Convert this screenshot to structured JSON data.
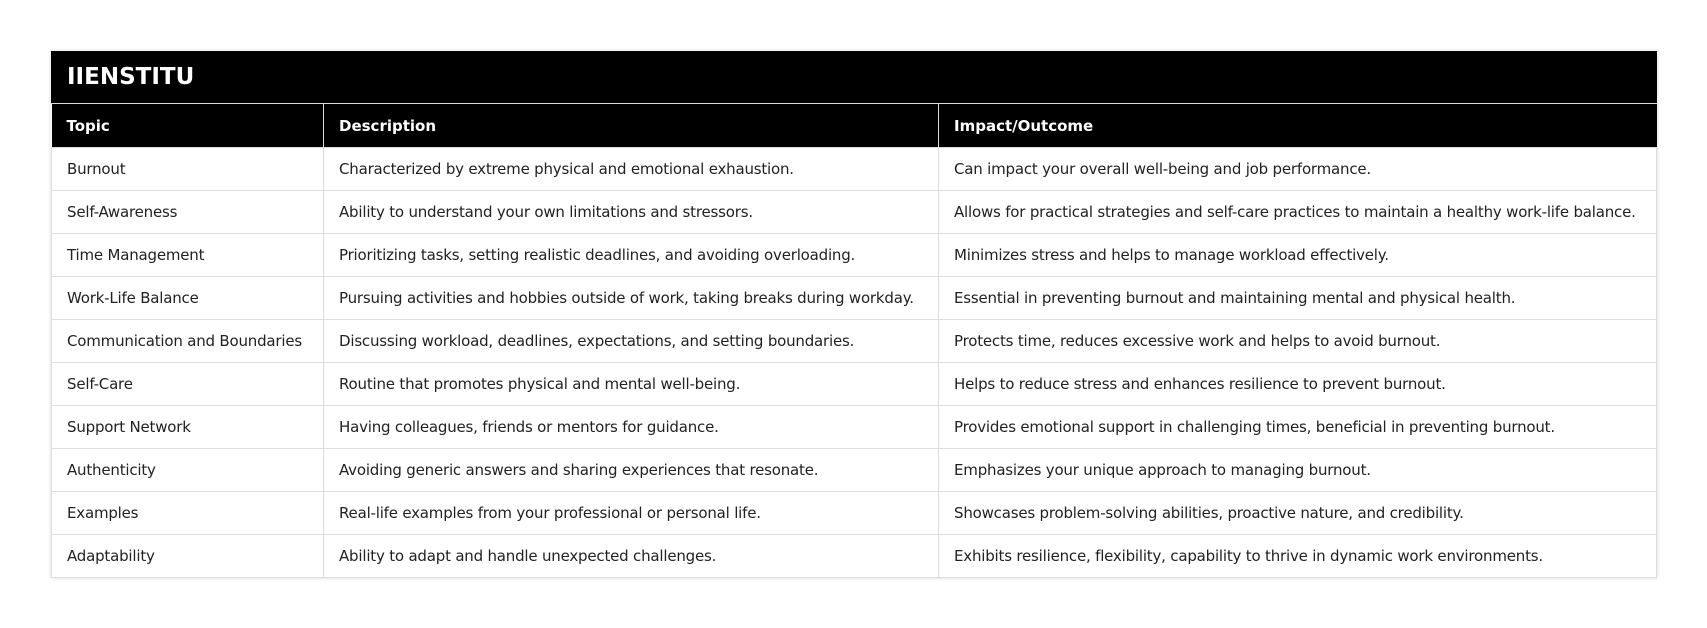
{
  "title": "IIENSTITU",
  "headers": [
    "Topic",
    "Description",
    "Impact/Outcome"
  ],
  "rows": [
    [
      "Burnout",
      "Characterized by extreme physical and emotional exhaustion.",
      "Can impact your overall well-being and job performance."
    ],
    [
      "Self-Awareness",
      "Ability to understand your own limitations and stressors.",
      "Allows for practical strategies and self-care practices to maintain a healthy work-life balance."
    ],
    [
      "Time Management",
      "Prioritizing tasks, setting realistic deadlines, and avoiding overloading.",
      "Minimizes stress and helps to manage workload effectively."
    ],
    [
      "Work-Life Balance",
      "Pursuing activities and hobbies outside of work, taking breaks during workday.",
      "Essential in preventing burnout and maintaining mental and physical health."
    ],
    [
      "Communication and Boundaries",
      "Discussing workload, deadlines, expectations, and setting boundaries.",
      "Protects time, reduces excessive work and helps to avoid burnout."
    ],
    [
      "Self-Care",
      "Routine that promotes physical and mental well-being.",
      "Helps to reduce stress and enhances resilience to prevent burnout."
    ],
    [
      "Support Network",
      "Having colleagues, friends or mentors for guidance.",
      "Provides emotional support in challenging times, beneficial in preventing burnout."
    ],
    [
      "Authenticity",
      "Avoiding generic answers and sharing experiences that resonate.",
      "Emphasizes your unique approach to managing burnout."
    ],
    [
      "Examples",
      "Real-life examples from your professional or personal life.",
      "Showcases problem-solving abilities, proactive nature, and credibility."
    ],
    [
      "Adaptability",
      "Ability to adapt and handle unexpected challenges.",
      "Exhibits resilience, flexibility, capability to thrive in dynamic work environments."
    ]
  ]
}
